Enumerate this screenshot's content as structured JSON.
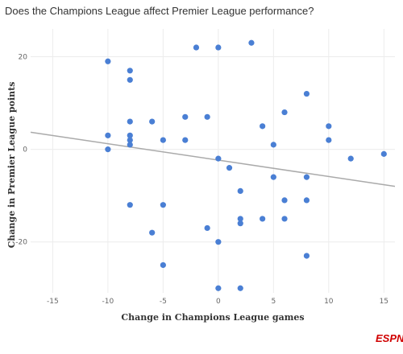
{
  "chart_data": {
    "type": "scatter",
    "title": "Does the Champions League affect Premier League performance?",
    "xlabel": "Change in Champions League games",
    "ylabel": "Change in Premier League points",
    "xlim": [
      -17,
      16
    ],
    "ylim": [
      -31,
      26
    ],
    "x_ticks": [
      -15,
      -10,
      -5,
      0,
      5,
      10,
      15
    ],
    "y_ticks": [
      20,
      0,
      -20
    ],
    "grid": true,
    "point_color": "#4a7fd4",
    "trend_color": "#aaaaaa",
    "points": [
      {
        "x": -10,
        "y": 19
      },
      {
        "x": -10,
        "y": 3
      },
      {
        "x": -10,
        "y": 0
      },
      {
        "x": -8,
        "y": 17
      },
      {
        "x": -8,
        "y": 15
      },
      {
        "x": -8,
        "y": 6
      },
      {
        "x": -8,
        "y": 3
      },
      {
        "x": -8,
        "y": 2
      },
      {
        "x": -8,
        "y": 1
      },
      {
        "x": -8,
        "y": -12
      },
      {
        "x": -6,
        "y": 6
      },
      {
        "x": -6,
        "y": -18
      },
      {
        "x": -5,
        "y": 2
      },
      {
        "x": -5,
        "y": -12
      },
      {
        "x": -5,
        "y": -25
      },
      {
        "x": -3,
        "y": 7
      },
      {
        "x": -3,
        "y": 2
      },
      {
        "x": -2,
        "y": 22
      },
      {
        "x": -1,
        "y": 7
      },
      {
        "x": -1,
        "y": -17
      },
      {
        "x": 0,
        "y": 22
      },
      {
        "x": 0,
        "y": -2
      },
      {
        "x": 0,
        "y": -20
      },
      {
        "x": 0,
        "y": -30
      },
      {
        "x": 1,
        "y": -4
      },
      {
        "x": 2,
        "y": -9
      },
      {
        "x": 2,
        "y": -15
      },
      {
        "x": 2,
        "y": -16
      },
      {
        "x": 2,
        "y": -30
      },
      {
        "x": 3,
        "y": 23
      },
      {
        "x": 4,
        "y": 5
      },
      {
        "x": 4,
        "y": -15
      },
      {
        "x": 5,
        "y": 1
      },
      {
        "x": 5,
        "y": -6
      },
      {
        "x": 6,
        "y": 8
      },
      {
        "x": 6,
        "y": -11
      },
      {
        "x": 6,
        "y": -15
      },
      {
        "x": 8,
        "y": 12
      },
      {
        "x": 8,
        "y": -6
      },
      {
        "x": 8,
        "y": -11
      },
      {
        "x": 8,
        "y": -23
      },
      {
        "x": 10,
        "y": 5
      },
      {
        "x": 10,
        "y": 2
      },
      {
        "x": 12,
        "y": -2
      },
      {
        "x": 15,
        "y": -1
      }
    ],
    "trendline": [
      {
        "x": -17,
        "y": 3.7
      },
      {
        "x": 16,
        "y": -8
      }
    ]
  },
  "footer": {
    "brand": "ESPN"
  }
}
